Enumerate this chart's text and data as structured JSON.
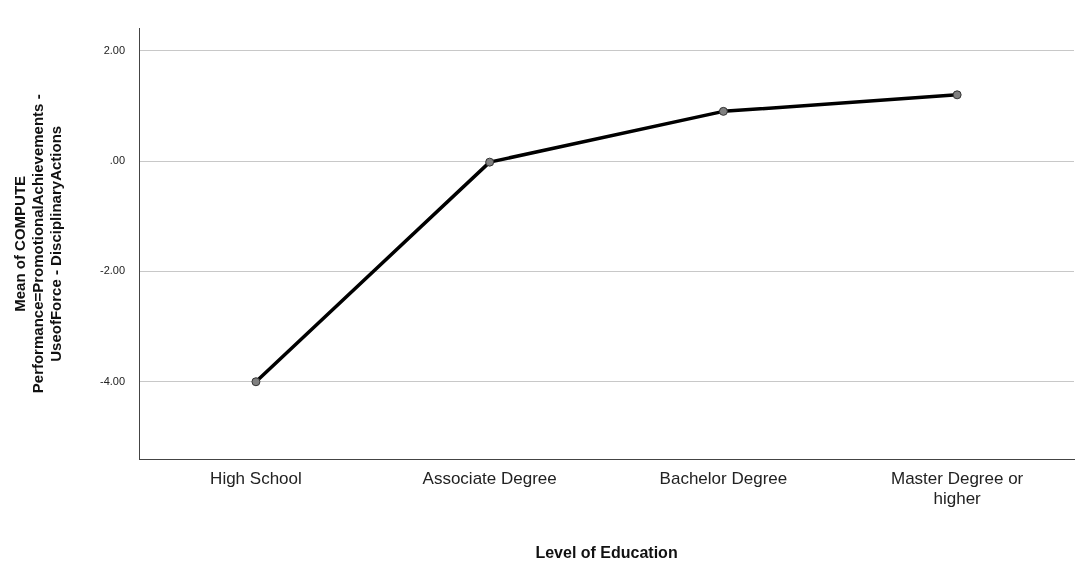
{
  "chart_data": {
    "type": "line",
    "xlabel": "Level of Education",
    "ylabel": "Mean of COMPUTE Performance=PromotionalAchievements - UseofForce - DisciplinaryActions",
    "categories": [
      "High School",
      "Associate Degree",
      "Bachelor Degree",
      "Master Degree or higher"
    ],
    "series": [
      {
        "color": "#000000",
        "values": [
          -4.0,
          -0.02,
          0.9,
          1.2
        ]
      }
    ],
    "ylim": [
      -5.4,
      2.4
    ],
    "yticks": [
      {
        "value": 2,
        "label": "2.00"
      },
      {
        "value": 0,
        "label": ".00"
      },
      {
        "value": -2,
        "label": "-2.00"
      },
      {
        "value": -4,
        "label": "-4.00"
      }
    ],
    "grid": "y",
    "marker": "circle",
    "line_style": "solid",
    "legend": false
  }
}
